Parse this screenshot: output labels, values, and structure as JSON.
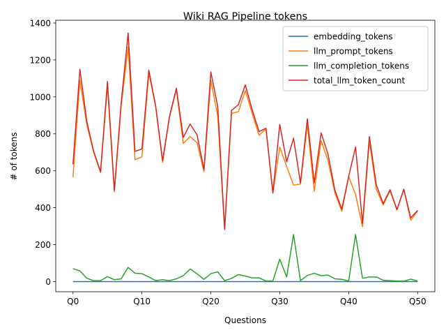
{
  "chart_data": {
    "type": "line",
    "title": "Wiki RAG Pipeline tokens",
    "xlabel": "Questions",
    "ylabel": "# of tokens",
    "x": [
      "Q0",
      "Q1",
      "Q2",
      "Q3",
      "Q4",
      "Q5",
      "Q6",
      "Q7",
      "Q8",
      "Q9",
      "Q10",
      "Q11",
      "Q12",
      "Q13",
      "Q14",
      "Q15",
      "Q16",
      "Q17",
      "Q18",
      "Q19",
      "Q20",
      "Q21",
      "Q22",
      "Q23",
      "Q24",
      "Q25",
      "Q26",
      "Q27",
      "Q28",
      "Q29",
      "Q30",
      "Q31",
      "Q32",
      "Q33",
      "Q34",
      "Q35",
      "Q36",
      "Q37",
      "Q38",
      "Q39",
      "Q40",
      "Q41",
      "Q42",
      "Q43",
      "Q44",
      "Q45",
      "Q46",
      "Q47",
      "Q48",
      "Q49",
      "Q50"
    ],
    "xticks": [
      "Q0",
      "Q10",
      "Q20",
      "Q30",
      "Q40",
      "Q50"
    ],
    "yticks": [
      0,
      200,
      400,
      600,
      800,
      1000,
      1200,
      1400
    ],
    "ylim": [
      -55,
      1415
    ],
    "grid": false,
    "legend_position": "top-right",
    "series": [
      {
        "name": "embedding_tokens",
        "color": "#1f77b4",
        "values": [
          0,
          0,
          0,
          0,
          0,
          0,
          0,
          0,
          0,
          0,
          0,
          0,
          0,
          0,
          0,
          0,
          0,
          0,
          0,
          0,
          0,
          0,
          0,
          0,
          0,
          0,
          0,
          0,
          0,
          0,
          0,
          0,
          0,
          0,
          0,
          0,
          0,
          0,
          0,
          0,
          0,
          0,
          0,
          0,
          0,
          0,
          0,
          0,
          0,
          0,
          0
        ]
      },
      {
        "name": "llm_prompt_tokens",
        "color": "#ff7f0e",
        "values": [
          565,
          1090,
          850,
          700,
          590,
          1060,
          485,
          955,
          1270,
          660,
          675,
          1130,
          945,
          645,
          890,
          1040,
          748,
          785,
          752,
          595,
          1090,
          895,
          280,
          910,
          920,
          1035,
          910,
          792,
          827,
          478,
          728,
          623,
          522,
          528,
          848,
          490,
          763,
          655,
          480,
          380,
          568,
          472,
          297,
          760,
          500,
          415,
          492,
          387,
          498,
          332,
          382
        ]
      },
      {
        "name": "llm_completion_tokens",
        "color": "#2ca02c",
        "values": [
          70,
          58,
          18,
          5,
          5,
          27,
          10,
          15,
          77,
          45,
          43,
          25,
          5,
          10,
          5,
          15,
          32,
          68,
          42,
          12,
          43,
          53,
          5,
          17,
          38,
          30,
          20,
          20,
          3,
          3,
          122,
          25,
          255,
          5,
          33,
          45,
          32,
          35,
          15,
          12,
          3,
          255,
          18,
          25,
          25,
          7,
          5,
          3,
          2,
          13,
          3
        ]
      },
      {
        "name": "total_llm_token_count",
        "color": "#d62728",
        "values": [
          635,
          1150,
          868,
          705,
          595,
          1083,
          495,
          970,
          1345,
          705,
          718,
          1145,
          950,
          655,
          895,
          1047,
          780,
          853,
          794,
          607,
          1135,
          948,
          285,
          927,
          958,
          1065,
          930,
          812,
          830,
          481,
          851,
          648,
          777,
          533,
          881,
          535,
          805,
          690,
          495,
          392,
          571,
          729,
          315,
          785,
          525,
          422,
          497,
          390,
          500,
          345,
          385
        ]
      }
    ]
  }
}
